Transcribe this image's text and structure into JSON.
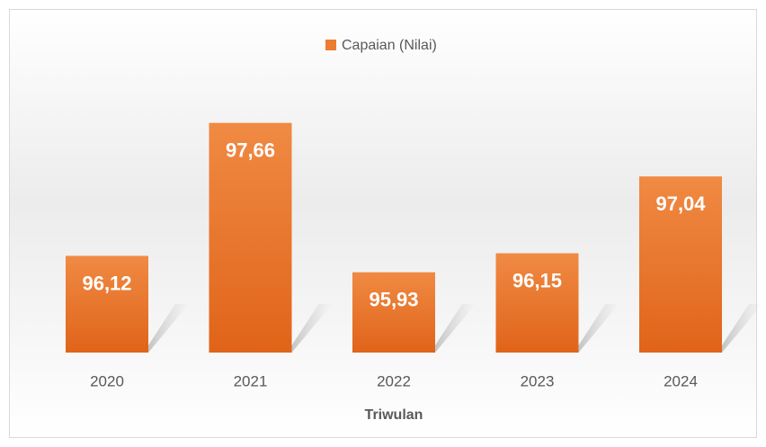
{
  "chart_data": {
    "type": "bar",
    "legend": "Capaian (Nilai)",
    "x_label": "Triwulan",
    "categories": [
      "2020",
      "2021",
      "2022",
      "2023",
      "2024"
    ],
    "values": [
      96.12,
      97.66,
      95.93,
      96.15,
      97.04
    ],
    "value_labels": [
      "96,12",
      "97,66",
      "95,93",
      "96,15",
      "97,04"
    ],
    "color": "#ed7d31",
    "ylim": [
      95,
      98
    ],
    "grid": false,
    "legend_position": "top"
  }
}
